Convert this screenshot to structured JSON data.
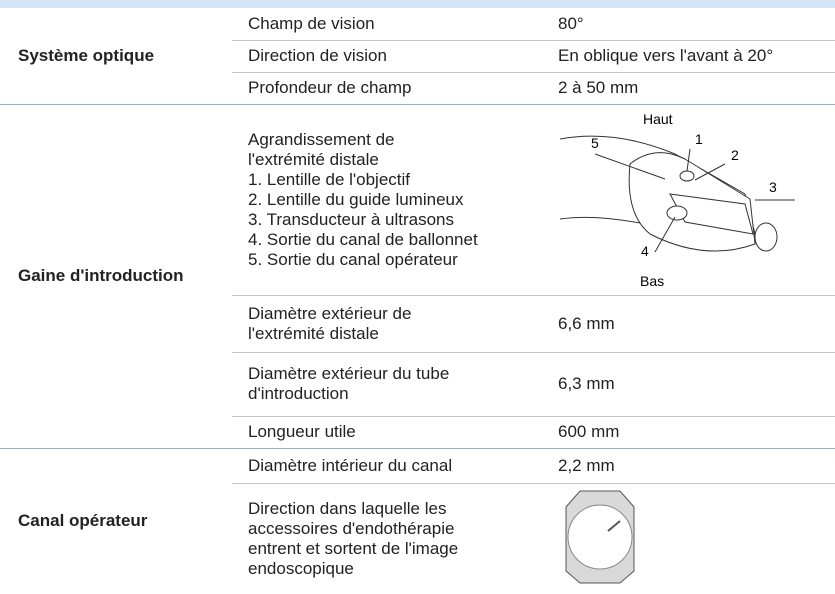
{
  "table": {
    "groups": [
      {
        "label": "Système optique",
        "rows": [
          {
            "name": [
              "Champ de vision"
            ],
            "value": [
              "80°"
            ]
          },
          {
            "name": [
              "Direction de vision"
            ],
            "value": [
              "En oblique vers l'avant à 20°"
            ]
          },
          {
            "name": [
              "Profondeur de champ"
            ],
            "value": [
              "2 à 50 mm"
            ]
          }
        ]
      },
      {
        "label": "Gaine d'introduction",
        "rows": [
          {
            "name": [
              "Agrandissement de",
              "l'extrémité distale",
              "1. Lentille de l'objectif",
              "2. Lentille du guide lumineux",
              "3. Transducteur à ultrasons",
              "4. Sortie du canal de ballonnet",
              "5. Sortie du canal opérateur"
            ],
            "figure": {
              "top": "Haut",
              "bottom": "Bas",
              "numbers": [
                "1",
                "2",
                "3",
                "4",
                "5"
              ]
            }
          },
          {
            "name": [
              "Diamètre extérieur de",
              "l'extrémité distale"
            ],
            "value": [
              "6,6 mm"
            ]
          },
          {
            "name": [
              "Diamètre extérieur du tube",
              "d'introduction"
            ],
            "value": [
              "6,3 mm"
            ]
          },
          {
            "name": [
              "Longueur utile"
            ],
            "value": [
              "600 mm"
            ]
          }
        ]
      },
      {
        "label": "Canal opérateur",
        "rows": [
          {
            "name": [
              "Diamètre intérieur du canal"
            ],
            "value": [
              "2,2 mm"
            ]
          },
          {
            "name": [
              "Direction dans laquelle les",
              "accessoires d'endothérapie",
              "entrent et sortent de l'image",
              "endoscopique"
            ],
            "view": true
          }
        ]
      }
    ]
  }
}
